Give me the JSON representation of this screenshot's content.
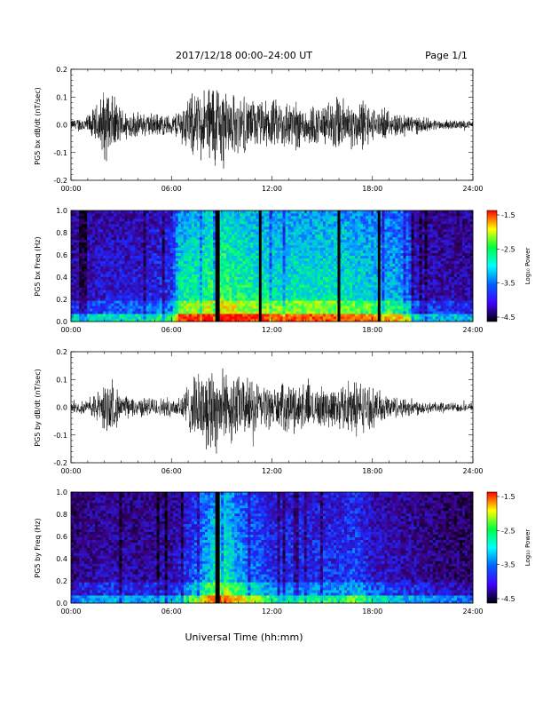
{
  "header": {
    "title": "2017/12/18   00:00–24:00 UT",
    "page": "Page 1/1"
  },
  "footer": {
    "xlabel": "Universal Time (hh:mm)"
  },
  "colorbar": {
    "label": "Log₁₀ Power",
    "ticks": [
      "-1.5",
      "-2.5",
      "-3.5",
      "-4.5"
    ],
    "colors": [
      "#ff0000",
      "#ffff00",
      "#00ff40",
      "#00ffff",
      "#0060ff",
      "#4000ff",
      "#000000"
    ]
  },
  "chart_data": [
    {
      "type": "line",
      "ylabel": "PG5 bx dB/dt (nT/sec)",
      "xlim": [
        0,
        24
      ],
      "ylim": [
        -0.2,
        0.2
      ],
      "xticks": [
        "00:00",
        "06:00",
        "12:00",
        "18:00",
        "24:00"
      ],
      "yticks": [
        "0.2",
        "0.1",
        "0.0",
        "-0.1",
        "-0.2"
      ],
      "envelope": {
        "t": [
          0,
          1,
          1.5,
          2,
          2.5,
          3,
          4,
          5,
          6,
          6.5,
          7,
          8,
          8.5,
          9,
          9.5,
          10,
          11,
          12,
          13,
          14,
          15,
          15.5,
          16,
          17,
          17.5,
          18,
          19,
          20,
          21,
          22,
          23,
          24
        ],
        "amp": [
          0.02,
          0.04,
          0.08,
          0.15,
          0.12,
          0.07,
          0.05,
          0.05,
          0.04,
          0.07,
          0.12,
          0.15,
          0.2,
          0.18,
          0.13,
          0.12,
          0.1,
          0.1,
          0.11,
          0.09,
          0.08,
          0.1,
          0.12,
          0.09,
          0.11,
          0.07,
          0.05,
          0.05,
          0.03,
          0.02,
          0.02,
          0.015
        ]
      }
    },
    {
      "type": "heatmap",
      "ylabel": "PG5 bx Freq (Hz)",
      "xlim": [
        0,
        24
      ],
      "ylim": [
        0,
        1
      ],
      "zlim": [
        -4.5,
        -1.5
      ],
      "xticks": [
        "00:00",
        "06:00",
        "12:00",
        "18:00",
        "24:00"
      ],
      "yticks": [
        "1.0",
        "0.8",
        "0.6",
        "0.4",
        "0.2",
        "0.0"
      ],
      "activity": {
        "t": [
          0,
          2,
          4,
          6,
          6.5,
          8,
          9,
          10,
          12,
          14,
          16,
          18,
          20,
          20.5,
          22,
          24
        ],
        "level": [
          0.2,
          0.25,
          0.25,
          0.3,
          0.55,
          0.6,
          0.65,
          0.6,
          0.55,
          0.55,
          0.55,
          0.5,
          0.45,
          0.25,
          0.2,
          0.2
        ]
      },
      "gaps_hours": [
        8.7,
        8.8,
        11.3,
        16.0,
        18.4
      ]
    },
    {
      "type": "line",
      "ylabel": "PG5 by dB/dt (nT/sec)",
      "xlim": [
        0,
        24
      ],
      "ylim": [
        -0.2,
        0.2
      ],
      "xticks": [
        "00:00",
        "06:00",
        "12:00",
        "18:00",
        "24:00"
      ],
      "yticks": [
        "0.2",
        "0.1",
        "0.0",
        "-0.1",
        "-0.2"
      ],
      "envelope": {
        "t": [
          0,
          1,
          1.5,
          2,
          2.5,
          3,
          4,
          5,
          6,
          6.5,
          7,
          8,
          8.5,
          9,
          9.5,
          10,
          11,
          12,
          13,
          14,
          15,
          16,
          16.5,
          17,
          18,
          19,
          20,
          21,
          22,
          23,
          24
        ],
        "amp": [
          0.02,
          0.03,
          0.06,
          0.1,
          0.1,
          0.05,
          0.04,
          0.04,
          0.04,
          0.05,
          0.1,
          0.16,
          0.2,
          0.15,
          0.15,
          0.13,
          0.11,
          0.08,
          0.1,
          0.1,
          0.08,
          0.09,
          0.1,
          0.12,
          0.08,
          0.05,
          0.04,
          0.03,
          0.02,
          0.02,
          0.015
        ]
      }
    },
    {
      "type": "heatmap",
      "ylabel": "PG5 by Freq (Hz)",
      "xlim": [
        0,
        24
      ],
      "ylim": [
        0,
        1
      ],
      "zlim": [
        -4.5,
        -1.5
      ],
      "xticks": [
        "00:00",
        "06:00",
        "12:00",
        "18:00",
        "24:00"
      ],
      "yticks": [
        "1.0",
        "0.8",
        "0.6",
        "0.4",
        "0.2",
        "0.0"
      ],
      "activity": {
        "t": [
          0,
          2,
          4,
          6,
          7,
          8,
          9,
          10,
          12,
          14,
          16,
          17,
          18,
          20,
          22,
          24
        ],
        "level": [
          0.15,
          0.2,
          0.18,
          0.2,
          0.3,
          0.45,
          0.6,
          0.45,
          0.3,
          0.3,
          0.3,
          0.35,
          0.25,
          0.2,
          0.15,
          0.12
        ]
      },
      "gaps_hours": [
        8.7,
        8.8
      ]
    }
  ]
}
